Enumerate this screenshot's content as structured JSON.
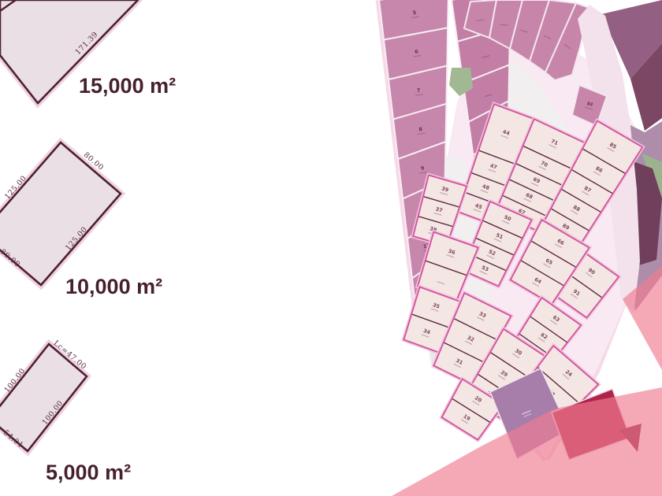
{
  "left_panel": {
    "plots": [
      {
        "area_label": "15,000 m²",
        "dim_labels": [
          "171.39"
        ]
      },
      {
        "area_label": "10,000 m²",
        "dim_labels": [
          "80.00",
          "125.00",
          "125.00",
          "80.00"
        ]
      },
      {
        "area_label": "5,000 m²",
        "dim_labels": [
          "Lc=47.00",
          "100.00",
          "100.00",
          "Lc=54.01"
        ]
      }
    ]
  },
  "map": {
    "col1_numbers": [
      "5",
      "6",
      "7",
      "8",
      "9",
      "10",
      "11",
      "12"
    ],
    "col2_numbers": [
      "",
      "",
      "",
      "43",
      "42",
      "41",
      "40",
      ""
    ],
    "top_wedge_numbers": [
      "",
      "",
      "",
      "",
      ""
    ],
    "corner_plot_number": "84",
    "fan_blocks": [
      {
        "numbers": [
          "44",
          "47",
          "48",
          "45"
        ]
      },
      {
        "numbers": [
          "39",
          "37",
          "38"
        ]
      },
      {
        "numbers": [
          "71",
          "70",
          "69",
          "68",
          "67"
        ]
      },
      {
        "numbers": [
          "85",
          "86",
          "87",
          "88",
          "89"
        ]
      },
      {
        "numbers": [
          "90",
          "91"
        ]
      },
      {
        "numbers": [
          "50",
          "51",
          "52",
          "53"
        ]
      },
      {
        "numbers": [
          "66",
          "65",
          "64"
        ]
      },
      {
        "numbers": [
          "63",
          "62",
          "61"
        ]
      },
      {
        "numbers": [
          "36",
          ""
        ]
      },
      {
        "numbers": [
          "35",
          "34"
        ]
      },
      {
        "numbers": [
          "33",
          "32",
          "31"
        ]
      },
      {
        "numbers": [
          "30",
          "29",
          "28"
        ]
      },
      {
        "numbers": [
          "24",
          "23",
          "22"
        ]
      },
      {
        "numbers": [
          "20",
          "19"
        ]
      }
    ]
  },
  "colors": {
    "deep_maroon": "#4d2133",
    "label_maroon": "#47202f",
    "left_plot_fill": "#eadfe5",
    "pink_plot": "#c786ab",
    "pink_plot_dark": "#c27ea5",
    "cream_plot": "#f3e6e3",
    "plot_outline": "#5d2840",
    "road_pink": "#f2c3dd",
    "magenta_road": "#d2539f",
    "dark_mauve_1": "#936084",
    "dark_mauve_2": "#7b4763",
    "purple_gray": "#ae8dab",
    "plum": "#6f3f5c",
    "green": "#9cb48e",
    "bottom_purple": "#a77da9",
    "crimson": "#b2234a",
    "crimson_dark": "#8e1638",
    "overlay_salmon": "rgba(240,125,145,0.66)"
  }
}
